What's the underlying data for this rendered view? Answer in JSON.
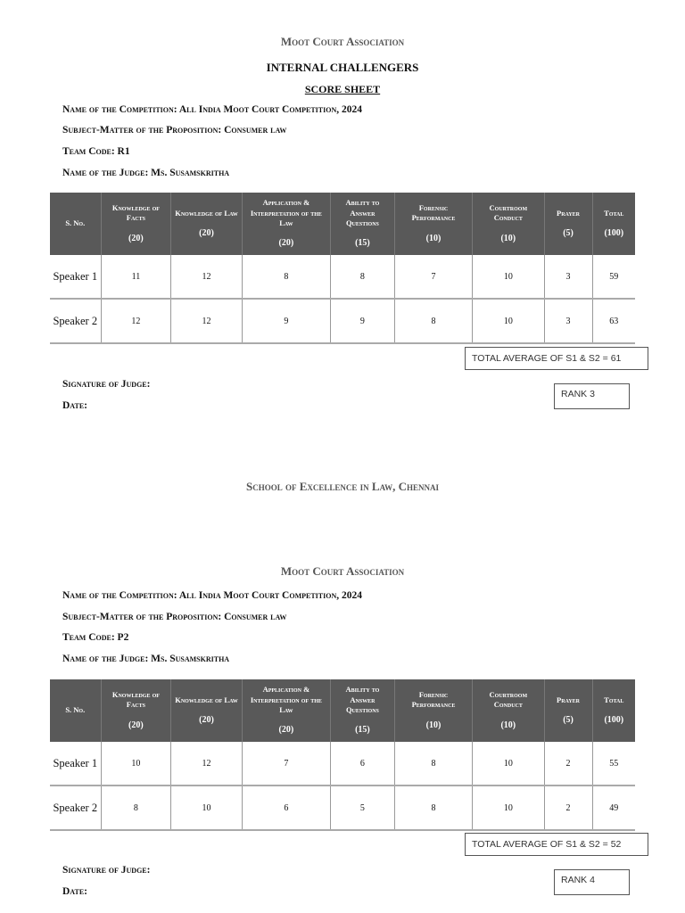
{
  "sheets": [
    {
      "org": "Moot Court Association",
      "heading": "INTERNAL CHALLENGERS",
      "subheading": "SCORE SHEET",
      "fields": [
        "Name of the Competition: All India Moot Court Competition, 2024",
        "Subject-Matter of the Proposition: Consumer law",
        "Team Code: R1",
        "Name of the Judge: Ms. Susamskritha"
      ],
      "rows": [
        [
          "Speaker 1",
          "11",
          "12",
          "8",
          "8",
          "7",
          "10",
          "3",
          "59"
        ],
        [
          "Speaker 2",
          "12",
          "12",
          "9",
          "9",
          "8",
          "10",
          "3",
          "63"
        ]
      ],
      "average": "TOTAL AVERAGE OF S1 & S2  = 61",
      "rank": "RANK 3",
      "signature": "Signature of Judge:",
      "date": "Date:"
    },
    {
      "org": "Moot Court Association",
      "heading": "",
      "subheading": "",
      "fields": [
        "Name of the Competition: All India Moot Court Competition, 2024",
        "Subject-Matter of the Proposition: Consumer law",
        "Team Code: P2",
        "Name of the Judge: Ms. Susamskritha"
      ],
      "rows": [
        [
          "Speaker 1",
          "10",
          "12",
          "7",
          "6",
          "8",
          "10",
          "2",
          "55"
        ],
        [
          "Speaker 2",
          "8",
          "10",
          "6",
          "5",
          "8",
          "10",
          "2",
          "49"
        ]
      ],
      "average": "TOTAL AVERAGE OF S1 & S2  = 52",
      "rank": "RANK 4",
      "signature": "Signature of Judge:",
      "date": "Date:"
    }
  ],
  "columns": [
    [
      "S. No.",
      ""
    ],
    [
      "Knowledge of Facts",
      "(20)"
    ],
    [
      "Knowledge of Law",
      "(20)"
    ],
    [
      "Application & Interpretation of the Law",
      "(20)"
    ],
    [
      "Ability to Answer Questions",
      "(15)"
    ],
    [
      "Forensic Performance",
      "(10)"
    ],
    [
      "Courtroom Conduct",
      "(10)"
    ],
    [
      "Prayer",
      "(5)"
    ],
    [
      "Total",
      "(100)"
    ]
  ],
  "footer": "School of Excellence in Law, Chennai",
  "colors": {
    "header_bg": "#595959"
  }
}
